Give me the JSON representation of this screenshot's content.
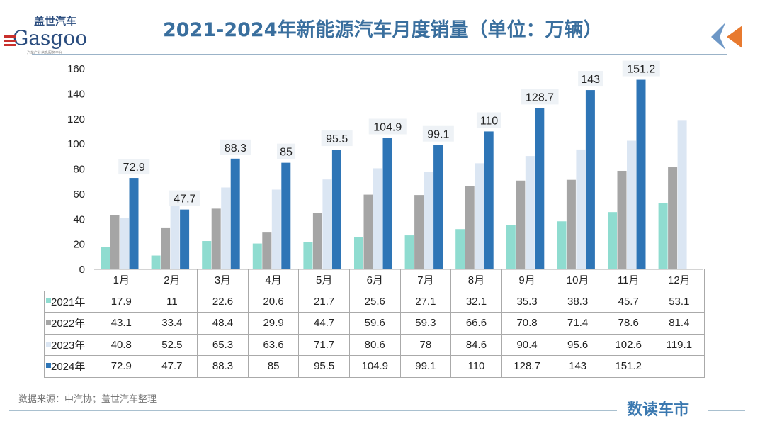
{
  "header": {
    "title": "2021-2024年新能源汽车月度销量（单位：万辆）",
    "logo_cn": "盖世汽车",
    "logo_en": "Gasgoo",
    "logo_sub": "汽车产业信息服务平台"
  },
  "footer": {
    "source": "数据来源：中汽协；盖世汽车整理",
    "brand": "数读车市"
  },
  "chart_data": {
    "type": "bar",
    "title": "2021-2024年新能源汽车月度销量（单位：万辆）",
    "categories": [
      "1月",
      "2月",
      "3月",
      "4月",
      "5月",
      "6月",
      "7月",
      "8月",
      "9月",
      "10月",
      "11月",
      "12月"
    ],
    "ylim": [
      0,
      160
    ],
    "yticks": [
      0,
      20,
      40,
      60,
      80,
      100,
      120,
      140,
      160
    ],
    "grid": false,
    "legend": "table-bottom",
    "series": [
      {
        "name": "2021年",
        "color": "#8fdcd0",
        "values": [
          17.9,
          11,
          22.6,
          20.6,
          21.7,
          25.6,
          27.1,
          32.1,
          35.3,
          38.3,
          45.7,
          53.1
        ]
      },
      {
        "name": "2022年",
        "color": "#a5a5a5",
        "values": [
          43.1,
          33.4,
          48.4,
          29.9,
          44.7,
          59.6,
          59.3,
          66.6,
          70.8,
          71.4,
          78.6,
          81.4
        ]
      },
      {
        "name": "2023年",
        "color": "#dbe6f3",
        "values": [
          40.8,
          52.5,
          65.3,
          63.6,
          71.7,
          80.6,
          78,
          84.6,
          90.4,
          95.6,
          102.6,
          119.1
        ]
      },
      {
        "name": "2024年",
        "color": "#2e75b6",
        "values": [
          72.9,
          47.7,
          88.3,
          85,
          95.5,
          104.9,
          99.1,
          110,
          128.7,
          143,
          151.2,
          null
        ]
      }
    ],
    "data_labels_series": "2024年"
  }
}
